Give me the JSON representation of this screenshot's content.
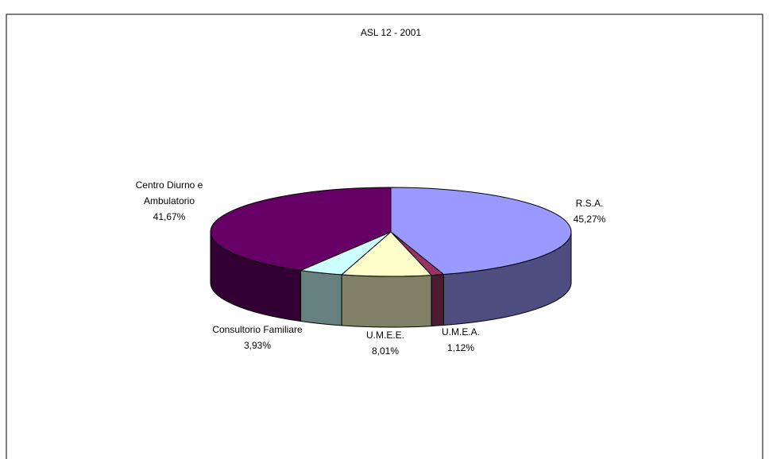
{
  "chart_data": {
    "type": "pie",
    "title": "ASL 12 - 2001",
    "categories": [
      "R.S.A.",
      "U.M.E.A.",
      "U.M.E.E.",
      "Consultorio Familiare",
      "Centro Diurno e Ambulatorio"
    ],
    "values": [
      45.27,
      1.12,
      8.01,
      3.93,
      41.67
    ],
    "value_labels": [
      "45,27%",
      "1,12%",
      "8,01%",
      "3,93%",
      "41,67%"
    ],
    "colors": [
      "#9999ff",
      "#993366",
      "#ffffcc",
      "#ccffff",
      "#660066"
    ]
  }
}
